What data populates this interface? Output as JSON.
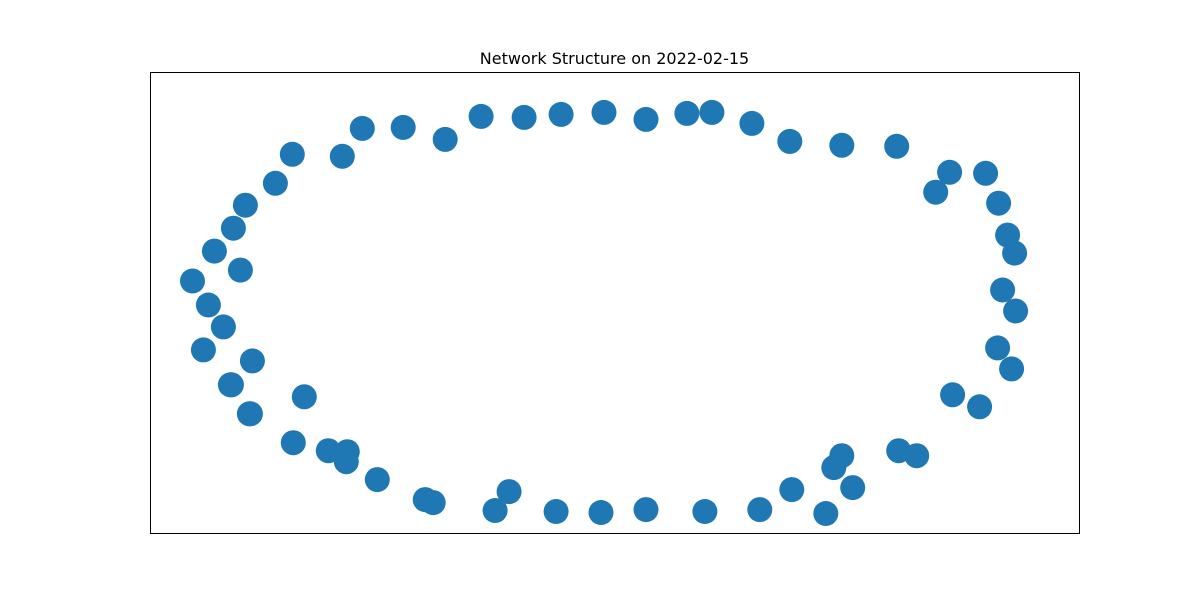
{
  "chart_data": {
    "type": "scatter",
    "title": "Network Structure on 2022-02-15",
    "xlabel": "",
    "ylabel": "",
    "axes_ticks_visible": false,
    "grid": false,
    "legend": "none",
    "xlim": [
      0,
      930
    ],
    "ylim": [
      0,
      462
    ],
    "marker_color": "#1f77b4",
    "frame_color": "#000000",
    "series": [
      {
        "points": [
          {
            "x": 283,
            "y": 431
          },
          {
            "x": 345,
            "y": 439
          },
          {
            "x": 406,
            "y": 440
          },
          {
            "x": 451,
            "y": 441
          },
          {
            "x": 496,
            "y": 438
          },
          {
            "x": 555,
            "y": 440
          },
          {
            "x": 610,
            "y": 438
          },
          {
            "x": 642,
            "y": 418
          },
          {
            "x": 703,
            "y": 416
          },
          {
            "x": 684,
            "y": 396
          },
          {
            "x": 275,
            "y": 428
          },
          {
            "x": 359,
            "y": 420
          },
          {
            "x": 227,
            "y": 408
          },
          {
            "x": 196,
            "y": 390
          },
          {
            "x": 178,
            "y": 379
          },
          {
            "x": 143,
            "y": 371
          },
          {
            "x": 100,
            "y": 342
          },
          {
            "x": 81,
            "y": 313
          },
          {
            "x": 154,
            "y": 325
          },
          {
            "x": 102,
            "y": 289
          },
          {
            "x": 197,
            "y": 380
          },
          {
            "x": 99,
            "y": 342
          },
          {
            "x": 80,
            "y": 313
          },
          {
            "x": 53,
            "y": 278
          },
          {
            "x": 73,
            "y": 255
          },
          {
            "x": 58,
            "y": 233
          },
          {
            "x": 42,
            "y": 209
          },
          {
            "x": 90,
            "y": 198
          },
          {
            "x": 64,
            "y": 179
          },
          {
            "x": 83,
            "y": 156
          },
          {
            "x": 95,
            "y": 133
          },
          {
            "x": 125,
            "y": 111
          },
          {
            "x": 142,
            "y": 82
          },
          {
            "x": 192,
            "y": 84
          },
          {
            "x": 212,
            "y": 56
          },
          {
            "x": 253,
            "y": 55
          },
          {
            "x": 295,
            "y": 67
          },
          {
            "x": 331,
            "y": 44
          },
          {
            "x": 374,
            "y": 45
          },
          {
            "x": 411,
            "y": 42
          },
          {
            "x": 454,
            "y": 40
          },
          {
            "x": 496,
            "y": 47
          },
          {
            "x": 537,
            "y": 41
          },
          {
            "x": 562,
            "y": 40
          },
          {
            "x": 602,
            "y": 51
          },
          {
            "x": 640,
            "y": 69
          },
          {
            "x": 692,
            "y": 73
          },
          {
            "x": 747,
            "y": 74
          },
          {
            "x": 800,
            "y": 100
          },
          {
            "x": 786,
            "y": 120
          },
          {
            "x": 836,
            "y": 101
          },
          {
            "x": 849,
            "y": 131
          },
          {
            "x": 858,
            "y": 163
          },
          {
            "x": 865,
            "y": 181
          },
          {
            "x": 853,
            "y": 218
          },
          {
            "x": 866,
            "y": 239
          },
          {
            "x": 848,
            "y": 276
          },
          {
            "x": 830,
            "y": 335
          },
          {
            "x": 862,
            "y": 297
          },
          {
            "x": 803,
            "y": 323
          },
          {
            "x": 749,
            "y": 379
          },
          {
            "x": 767,
            "y": 384
          },
          {
            "x": 692,
            "y": 384
          },
          {
            "x": 676,
            "y": 442
          }
        ]
      }
    ]
  }
}
